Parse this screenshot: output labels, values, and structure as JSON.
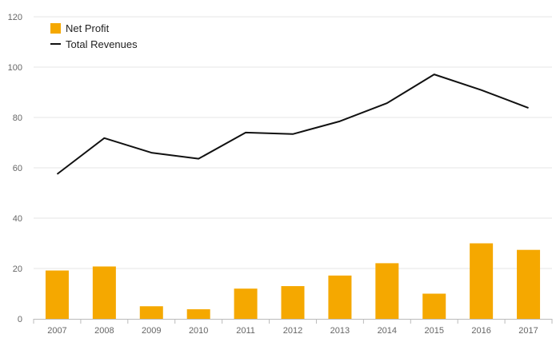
{
  "chart_data": {
    "type": "bar+line",
    "categories": [
      "2007",
      "2008",
      "2009",
      "2010",
      "2011",
      "2012",
      "2013",
      "2014",
      "2015",
      "2016",
      "2017"
    ],
    "series": [
      {
        "name": "Net Profit",
        "type": "bar",
        "color": "#f5a800",
        "values": [
          19.2,
          20.8,
          5.0,
          3.8,
          12.0,
          13.0,
          17.2,
          22.1,
          10.0,
          30.0,
          27.4
        ]
      },
      {
        "name": "Total Revenues",
        "type": "line",
        "color": "#111111",
        "values": [
          57.5,
          71.8,
          66.0,
          63.6,
          74.0,
          73.4,
          78.5,
          85.7,
          97.1,
          90.9,
          83.8
        ]
      }
    ],
    "ylim": [
      0,
      120
    ],
    "yticks": [
      0,
      20,
      40,
      60,
      80,
      100,
      120
    ],
    "grid": true,
    "legend": "top-left"
  }
}
